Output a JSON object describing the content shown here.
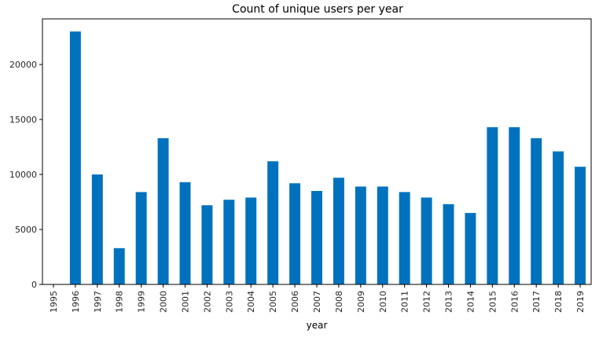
{
  "chart_data": {
    "type": "bar",
    "title": "Count of unique users per year",
    "xlabel": "year",
    "ylabel": "",
    "categories": [
      "1995",
      "1996",
      "1997",
      "1998",
      "1999",
      "2000",
      "2001",
      "2002",
      "2003",
      "2004",
      "2005",
      "2006",
      "2007",
      "2008",
      "2009",
      "2010",
      "2011",
      "2012",
      "2013",
      "2014",
      "2015",
      "2016",
      "2017",
      "2018",
      "2019"
    ],
    "values": [
      0,
      23000,
      10000,
      3300,
      8400,
      13300,
      9300,
      7200,
      7700,
      7900,
      11200,
      9200,
      8500,
      9700,
      8900,
      8900,
      8400,
      7900,
      7300,
      6500,
      14300,
      14300,
      13300,
      12100,
      10700
    ],
    "yticks": [
      0,
      5000,
      10000,
      15000,
      20000
    ],
    "ytick_labels": [
      "0",
      "5000",
      "10000",
      "15000",
      "20000"
    ],
    "ylim": [
      0,
      23000
    ],
    "bar_color": "#0072bd",
    "grid": false,
    "legend": "none"
  }
}
